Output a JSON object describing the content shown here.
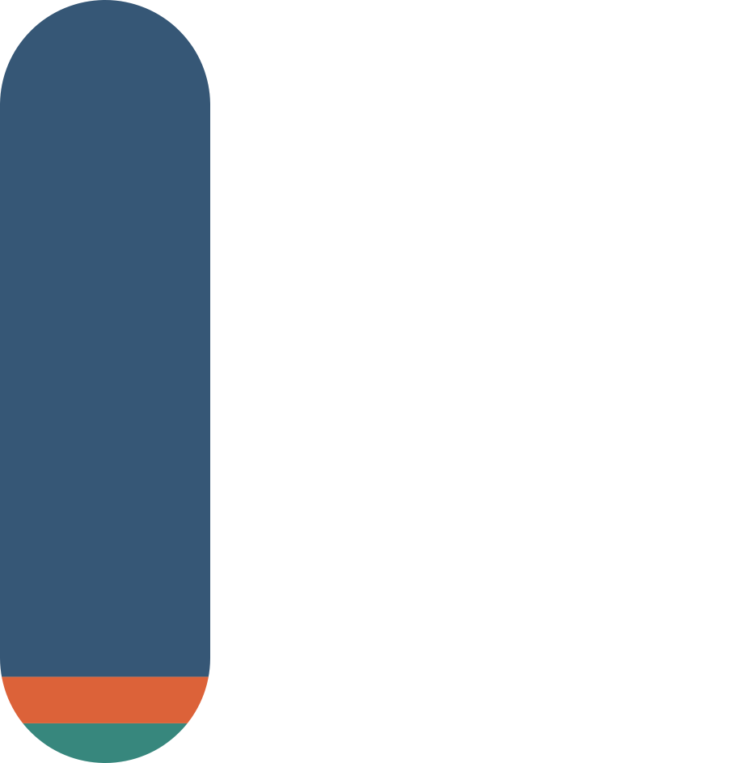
{
  "chart_data": {
    "type": "stacked-bar",
    "categories": [
      null
    ],
    "series": [
      {
        "color": "#37877d",
        "values": [
          5.2
        ]
      },
      {
        "color": "#dc6239",
        "values": [
          6.1
        ]
      },
      {
        "color": "#365776",
        "values": [
          88.7
        ]
      }
    ],
    "ylim": [
      0,
      100
    ]
  }
}
